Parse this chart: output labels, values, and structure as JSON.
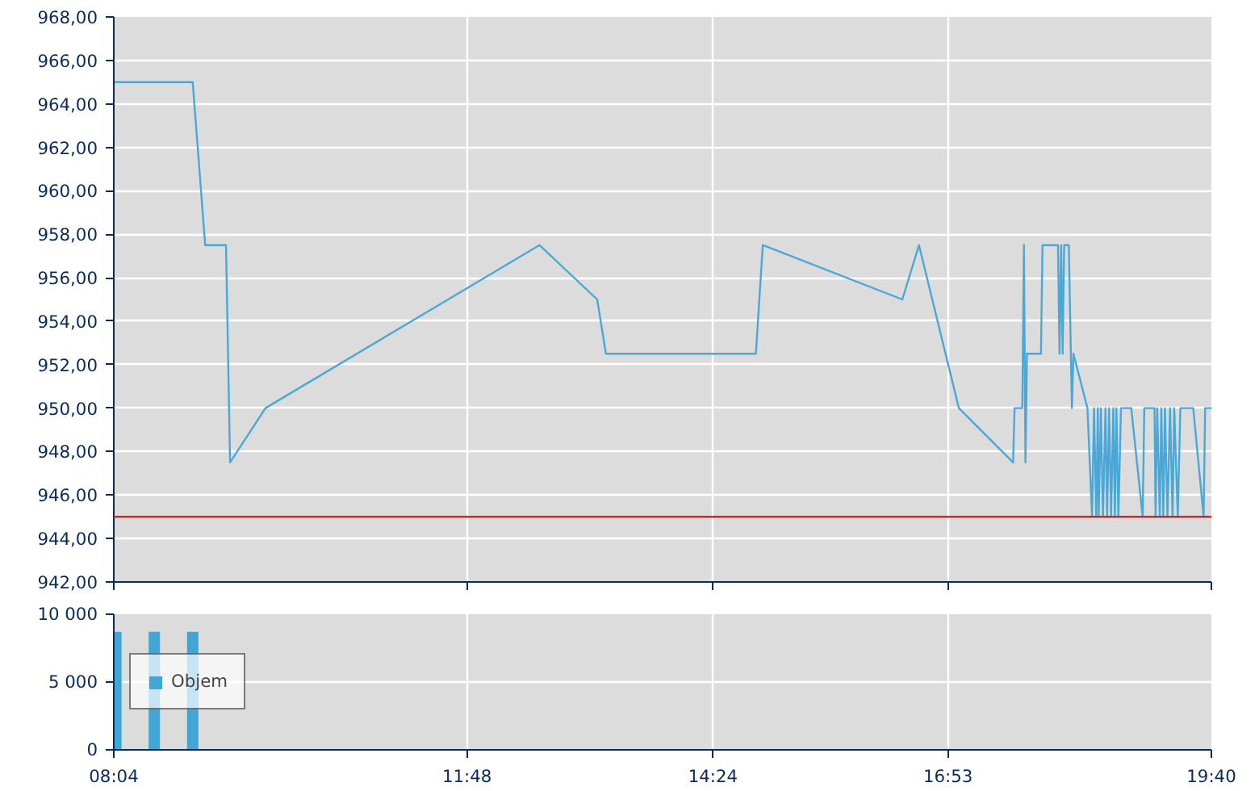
{
  "chart_data": [
    {
      "type": "line",
      "x": [
        8.067,
        8.901,
        9.033,
        9.253,
        9.296,
        9.67,
        12.565,
        13.176,
        13.268,
        14.853,
        14.926,
        16.401,
        16.577,
        16.998,
        17.571,
        17.587,
        17.669,
        17.686,
        17.702,
        17.718,
        17.866,
        17.882,
        18.046,
        18.062,
        18.079,
        18.095,
        18.111,
        18.16,
        18.193,
        18.209,
        18.357,
        18.406,
        18.427,
        18.45,
        18.467,
        18.476,
        18.499,
        18.521,
        18.548,
        18.565,
        18.586,
        18.607,
        18.63,
        18.647,
        18.663,
        18.684,
        18.712,
        18.82,
        18.941,
        18.958,
        19.066,
        19.077,
        19.094,
        19.122,
        19.138,
        19.159,
        19.176,
        19.203,
        19.23,
        19.257,
        19.274,
        19.312,
        19.339,
        19.475,
        19.585,
        19.601,
        19.667
      ],
      "series": [
        {
          "color": "#4aa8d8",
          "values": [
            965,
            965,
            957.5,
            957.5,
            947.5,
            950,
            957.5,
            955,
            952.5,
            952.5,
            957.5,
            955,
            957.5,
            950,
            947.5,
            950,
            950,
            957.5,
            947.5,
            952.5,
            952.5,
            957.5,
            957.5,
            952.5,
            957.5,
            952.5,
            957.5,
            957.5,
            950,
            952.5,
            950,
            945,
            950,
            945,
            950,
            945,
            950,
            945,
            950,
            945,
            950,
            945,
            950,
            945,
            950,
            945,
            950,
            950,
            945,
            950,
            950,
            945,
            950,
            945,
            950,
            945,
            950,
            945,
            950,
            945,
            950,
            945,
            950,
            950,
            945,
            950,
            950
          ]
        }
      ],
      "xlim": [
        8.067,
        19.667
      ],
      "xticks": [
        8.067,
        11.8,
        14.4,
        16.883,
        19.667
      ],
      "ylim": [
        942,
        968
      ],
      "yticks": [
        {
          "value": 942,
          "label": "942,00"
        },
        {
          "value": 944,
          "label": "944,00"
        },
        {
          "value": 946,
          "label": "946,00"
        },
        {
          "value": 948,
          "label": "948,00"
        },
        {
          "value": 950,
          "label": "950,00"
        },
        {
          "value": 952,
          "label": "952,00"
        },
        {
          "value": 954,
          "label": "954,00"
        },
        {
          "value": 956,
          "label": "956,00"
        },
        {
          "value": 958,
          "label": "958,00"
        },
        {
          "value": 960,
          "label": "960,00"
        },
        {
          "value": 962,
          "label": "962,00"
        },
        {
          "value": 964,
          "label": "964,00"
        },
        {
          "value": 966,
          "label": "966,00"
        },
        {
          "value": 968,
          "label": "968,00"
        }
      ],
      "ref_lines": [
        {
          "axis": "y",
          "value": 945,
          "color": "#e02020"
        }
      ],
      "grid": true,
      "tick_labels": "y"
    },
    {
      "type": "bar",
      "x": [
        8.089,
        8.495,
        8.901
      ],
      "series": [
        {
          "name": "Objem",
          "color": "#41a6d6",
          "values": [
            8700,
            8700,
            8700
          ]
        }
      ],
      "xlim": [
        8.067,
        19.667
      ],
      "xticks": [
        {
          "value": 8.067,
          "label": "08:04"
        },
        {
          "value": 11.8,
          "label": "11:48"
        },
        {
          "value": 14.4,
          "label": "14:24"
        },
        {
          "value": 16.883,
          "label": "16:53"
        },
        {
          "value": 19.667,
          "label": "19:40"
        }
      ],
      "ylim": [
        0,
        10000
      ],
      "yticks": [
        0,
        {
          "value": 5000,
          "label": "5 000"
        },
        {
          "value": 10000,
          "label": "10 000"
        }
      ],
      "grid": true,
      "legend": "left"
    }
  ]
}
